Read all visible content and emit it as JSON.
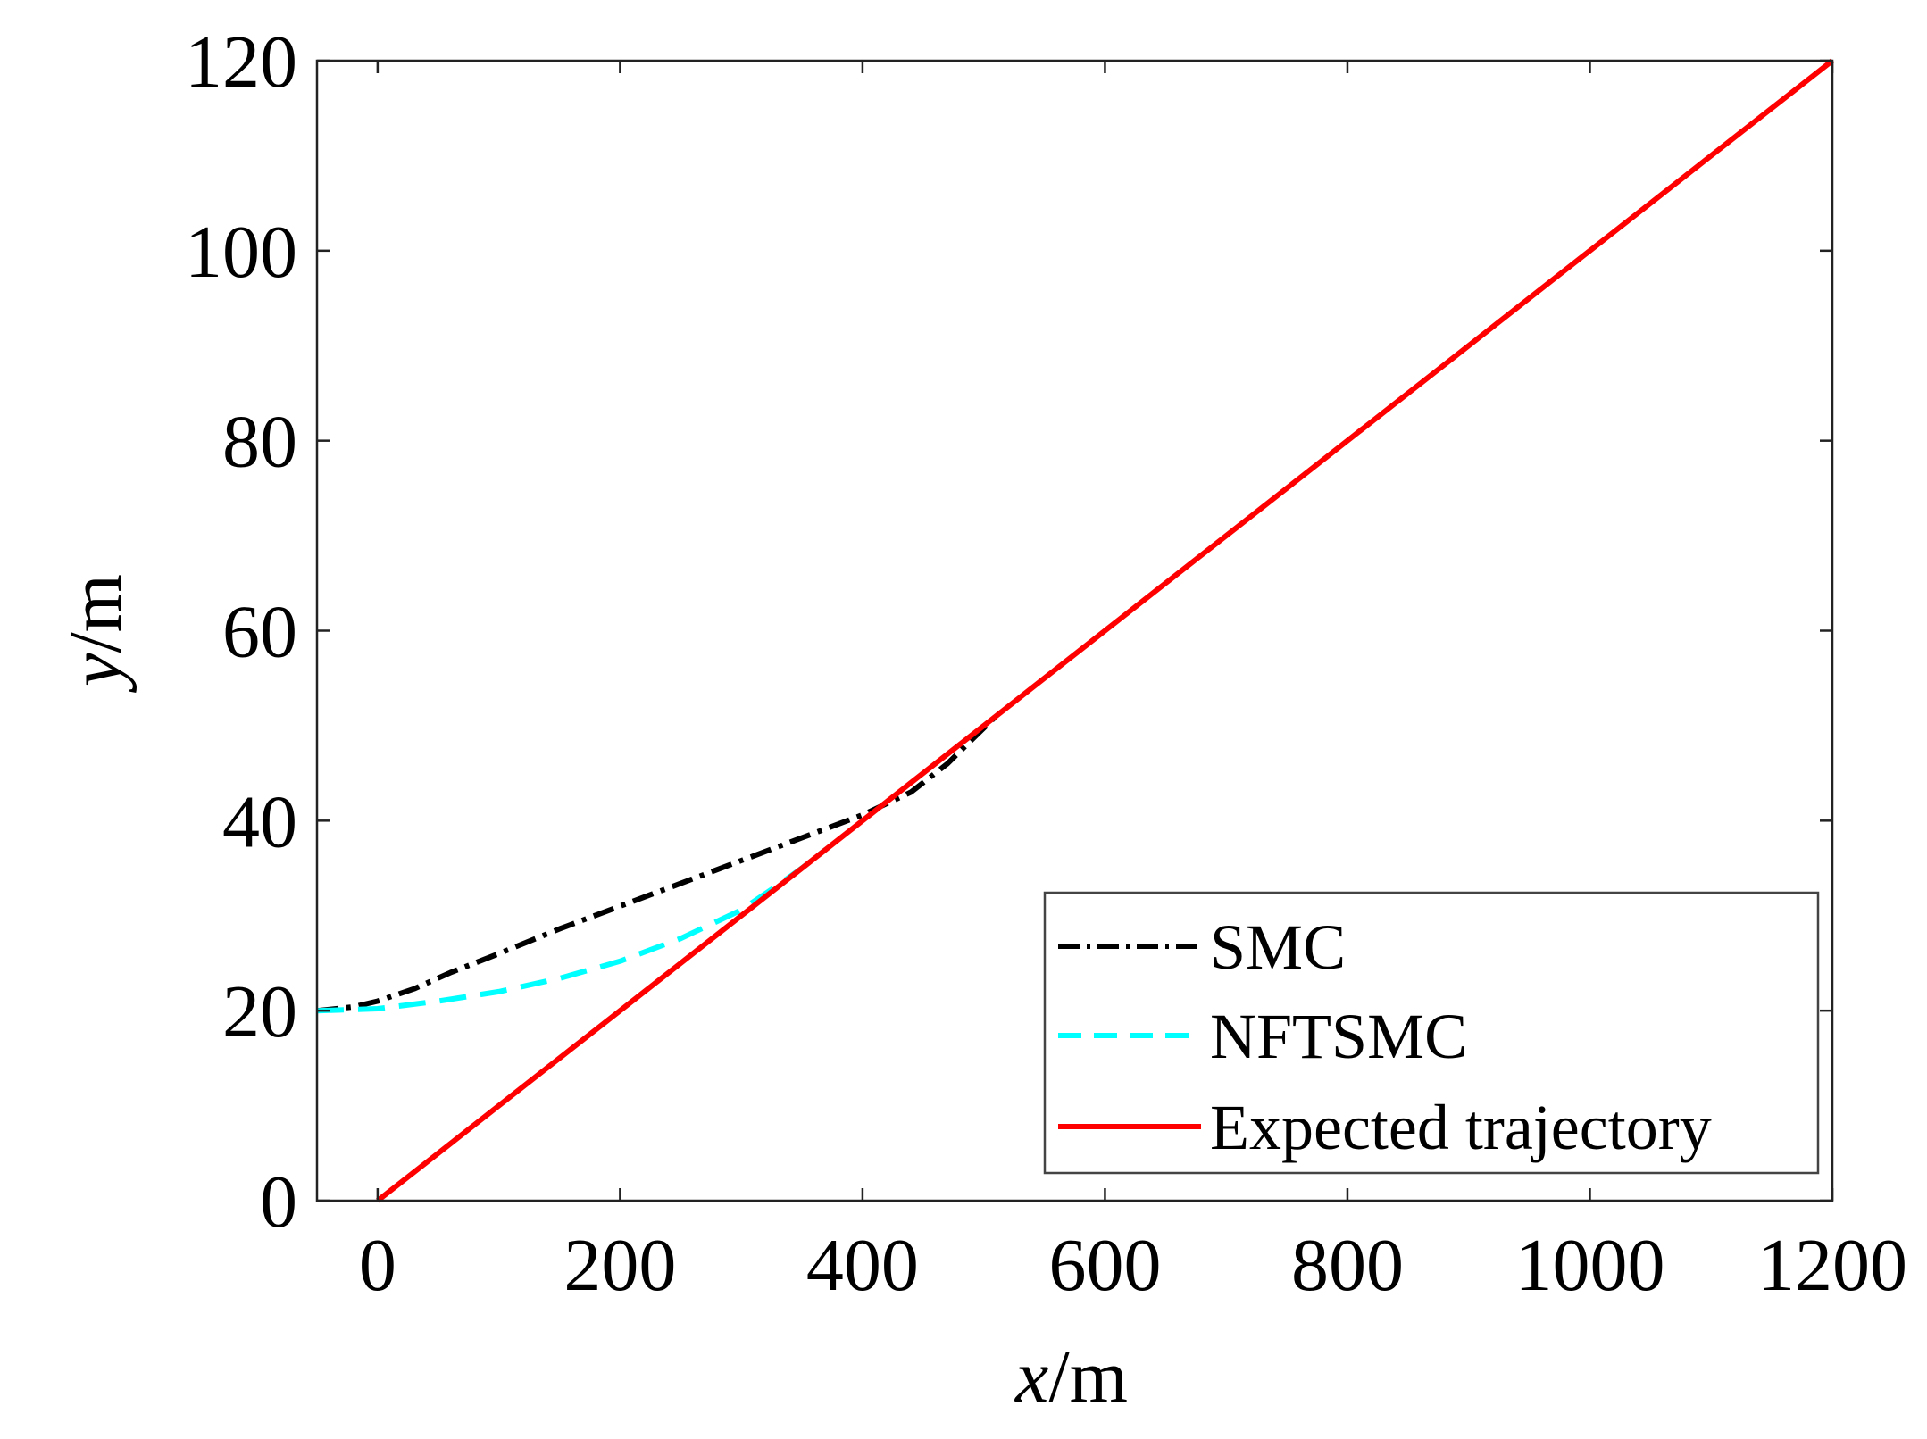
{
  "chart_data": {
    "type": "line",
    "title": "",
    "xlabel": {
      "var": "x",
      "unit": "/m"
    },
    "ylabel": {
      "var": "y",
      "unit": "/m"
    },
    "xlim": [
      -50,
      1200
    ],
    "ylim": [
      0,
      120
    ],
    "xticks": [
      0,
      200,
      400,
      600,
      800,
      1000,
      1200
    ],
    "yticks": [
      0,
      20,
      40,
      60,
      80,
      100,
      120
    ],
    "grid": false,
    "legend_position": "bottom-right",
    "series": [
      {
        "name": "SMC",
        "color": "#000000",
        "style": "dashdot",
        "x": [
          -50,
          -20,
          0,
          30,
          60,
          100,
          150,
          200,
          250,
          300,
          350,
          400,
          440,
          470,
          490,
          510
        ],
        "y": [
          20,
          20.4,
          21,
          22.3,
          24,
          26,
          28.6,
          31,
          33.4,
          35.8,
          38.2,
          40.6,
          43,
          46,
          48.5,
          51
        ]
      },
      {
        "name": "NFTSMC",
        "color": "#00FFFF",
        "style": "dashed",
        "x": [
          -50,
          0,
          50,
          100,
          150,
          200,
          250,
          300,
          330,
          350,
          370
        ],
        "y": [
          20,
          20.2,
          21,
          22,
          23.4,
          25.2,
          27.6,
          30.6,
          33.2,
          35,
          37
        ]
      },
      {
        "name": "Expected trajectory",
        "color": "#FF0000",
        "style": "solid",
        "x": [
          0,
          1200
        ],
        "y": [
          0,
          120
        ]
      }
    ]
  }
}
